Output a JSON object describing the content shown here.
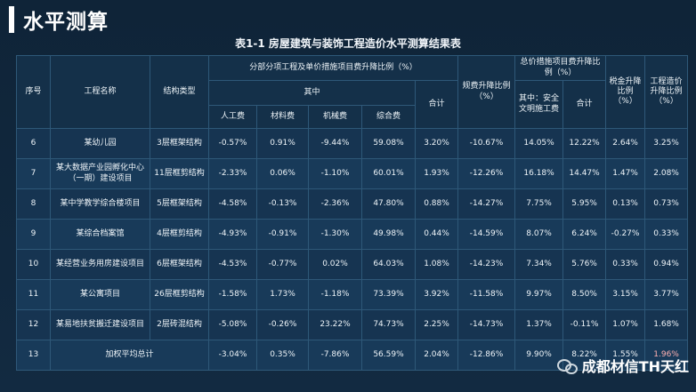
{
  "header": {
    "title": "水平测算"
  },
  "caption": "表1-1 房屋建筑与装饰工程造价水平测算结果表",
  "columns": {
    "seq": "序号",
    "name": "工程名称",
    "structure": "结构类型",
    "group_main": "分部分项工程及单价措施项目费升降比例（%）",
    "group_sub": "其中",
    "labor": "人工费",
    "material": "材料费",
    "machine": "机械费",
    "composite": "综合费",
    "total": "合计",
    "fee": "规费升降比例（%）",
    "overall_group": "总价措施项目费升降比例（%）",
    "safety": "其中：安全文明施工费",
    "overall_total": "合计",
    "tax": "税金升降比例（%）",
    "cost": "工程造价升降比例（%）"
  },
  "rows": [
    {
      "seq": "6",
      "name": "某幼儿园",
      "structure": "3层框架结构",
      "labor": "-0.57%",
      "material": "0.91%",
      "machine": "-9.44%",
      "composite": "59.08%",
      "total": "3.20%",
      "fee": "-10.67%",
      "safety": "14.05%",
      "overall": "12.22%",
      "tax": "2.64%",
      "cost": "3.25%"
    },
    {
      "seq": "7",
      "name": "某大数据产业园孵化中心（一期）建设项目",
      "structure": "11层框剪结构",
      "labor": "-2.33%",
      "material": "0.06%",
      "machine": "-1.10%",
      "composite": "60.01%",
      "total": "1.93%",
      "fee": "-12.26%",
      "safety": "16.18%",
      "overall": "14.47%",
      "tax": "1.47%",
      "cost": "2.08%"
    },
    {
      "seq": "8",
      "name": "某中学教学综合楼项目",
      "structure": "5层框架结构",
      "labor": "-4.58%",
      "material": "-0.13%",
      "machine": "-2.36%",
      "composite": "47.80%",
      "total": "0.88%",
      "fee": "-14.27%",
      "safety": "7.75%",
      "overall": "5.95%",
      "tax": "0.13%",
      "cost": "0.73%"
    },
    {
      "seq": "9",
      "name": "某综合档案馆",
      "structure": "4层框剪结构",
      "labor": "-4.93%",
      "material": "-0.91%",
      "machine": "-1.30%",
      "composite": "49.98%",
      "total": "0.44%",
      "fee": "-14.59%",
      "safety": "8.07%",
      "overall": "6.24%",
      "tax": "-0.27%",
      "cost": "0.33%"
    },
    {
      "seq": "10",
      "name": "某经营业务用房建设项目",
      "structure": "6层框架结构",
      "labor": "-4.53%",
      "material": "-0.77%",
      "machine": "0.02%",
      "composite": "64.03%",
      "total": "1.08%",
      "fee": "-14.23%",
      "safety": "7.34%",
      "overall": "5.76%",
      "tax": "0.33%",
      "cost": "0.94%"
    },
    {
      "seq": "11",
      "name": "某公寓项目",
      "structure": "26层框剪结构",
      "labor": "-1.58%",
      "material": "1.73%",
      "machine": "-1.18%",
      "composite": "73.39%",
      "total": "3.92%",
      "fee": "-11.58%",
      "safety": "9.97%",
      "overall": "8.50%",
      "tax": "3.15%",
      "cost": "3.77%"
    },
    {
      "seq": "12",
      "name": "某易地扶贫搬迁建设项目",
      "structure": "2层砖混结构",
      "labor": "-5.08%",
      "material": "-0.26%",
      "machine": "23.22%",
      "composite": "74.73%",
      "total": "2.25%",
      "fee": "-14.73%",
      "safety": "1.37%",
      "overall": "-0.11%",
      "tax": "1.07%",
      "cost": "1.68%"
    }
  ],
  "summary": {
    "seq": "13",
    "name": "加权平均总计",
    "labor": "-3.04%",
    "material": "0.35%",
    "machine": "-7.86%",
    "composite": "56.59%",
    "total": "2.04%",
    "fee": "-12.86%",
    "safety": "9.90%",
    "overall": "8.22%",
    "tax": "1.55%",
    "cost": "1.96%"
  },
  "watermark": {
    "text": "成都材信TH天红",
    "icon": "wechat-icon"
  }
}
